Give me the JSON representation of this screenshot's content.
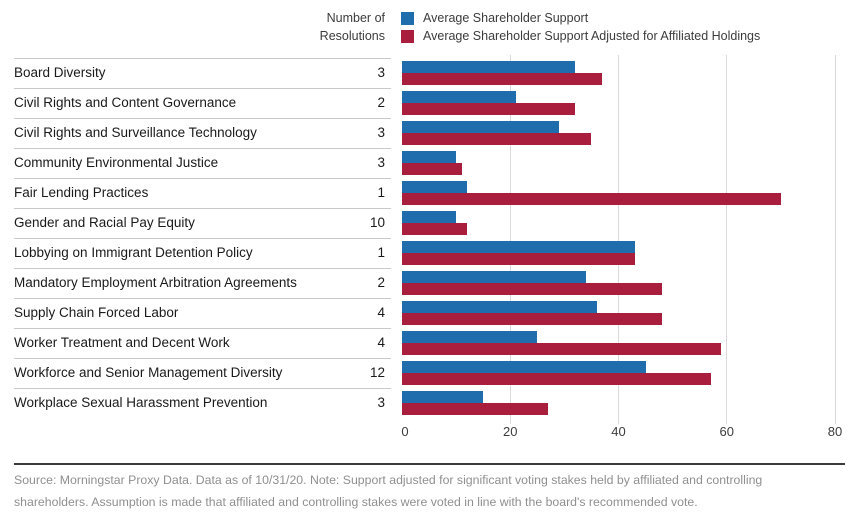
{
  "header": {
    "resolutions_column_label": "Number of\nResolutions"
  },
  "chart_data": {
    "type": "bar",
    "orientation": "horizontal",
    "title": "",
    "xlabel": "",
    "ylabel": "",
    "xlim": [
      0,
      80
    ],
    "xticks": [
      0,
      20,
      40,
      60,
      80
    ],
    "grid": "vertical",
    "legend_position": "top",
    "categories": [
      "Board Diversity",
      "Civil Rights and Content Governance",
      "Civil Rights and Surveillance Technology",
      "Community Environmental Justice",
      "Fair Lending Practices",
      "Gender and Racial Pay Equity",
      "Lobbying on Immigrant Detention Policy",
      "Mandatory Employment Arbitration Agreements",
      "Supply Chain Forced Labor",
      "Worker Treatment and Decent Work",
      "Workforce and Senior Management Diversity",
      "Workplace Sexual Harassment Prevention"
    ],
    "resolutions": [
      3,
      2,
      3,
      3,
      1,
      10,
      1,
      2,
      4,
      4,
      12,
      3
    ],
    "series": [
      {
        "name": "Average Shareholder Support",
        "color": "#1f6dad",
        "values": [
          32,
          21,
          29,
          10,
          12,
          10,
          43,
          34,
          36,
          25,
          45,
          15
        ]
      },
      {
        "name": "Average Shareholder Support Adjusted for Affiliated Holdings",
        "color": "#a81e3c",
        "values": [
          37,
          32,
          35,
          11,
          70,
          12,
          43,
          48,
          48,
          59,
          57,
          27
        ]
      }
    ]
  },
  "footer": {
    "note": "Source: Morningstar Proxy Data. Data as of 10/31/20. Note: Support adjusted for significant voting stakes held by affiliated and controlling shareholders. Assumption is made that affiliated and controlling stakes were voted in line with the board's recommended vote."
  }
}
